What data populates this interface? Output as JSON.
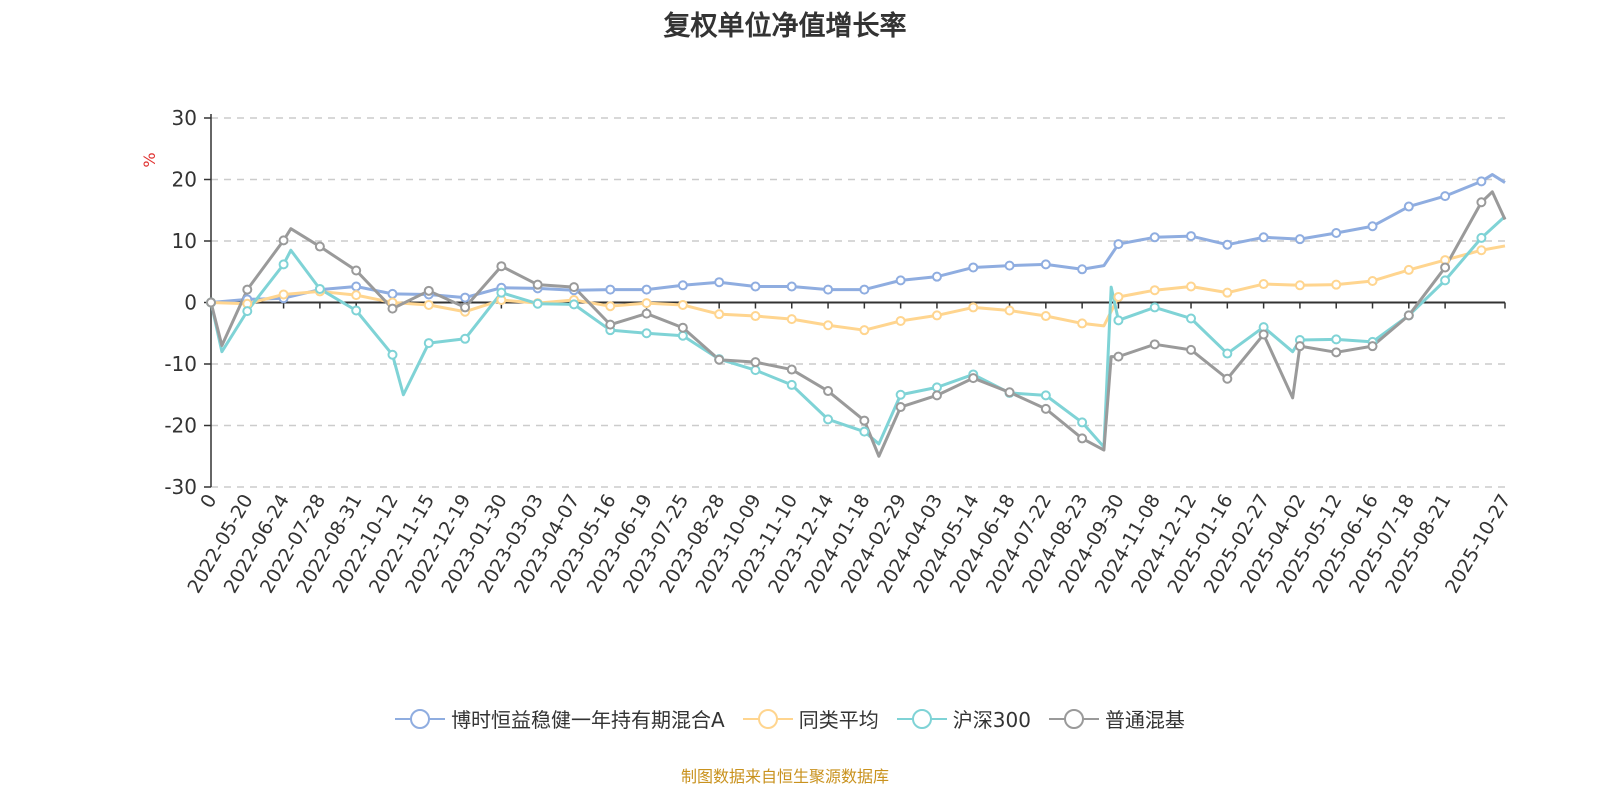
{
  "chart_data": {
    "type": "line",
    "title": "复权单位净值增长率",
    "ylabel": "%",
    "xlabel": "",
    "ylim": [
      -30,
      30
    ],
    "yticks": [
      30,
      20,
      10,
      0,
      -10,
      -20,
      -30
    ],
    "xlim": [
      0,
      35.65
    ],
    "grid": true,
    "legend_position": "bottom",
    "categories": [
      "0",
      "2022-05-20",
      "2022-06-24",
      "2022-07-28",
      "2022-08-31",
      "2022-10-12",
      "2022-11-15",
      "2022-12-19",
      "2023-01-30",
      "2023-03-03",
      "2023-04-07",
      "2023-05-16",
      "2023-06-19",
      "2023-07-25",
      "2023-08-28",
      "2023-10-09",
      "2023-11-10",
      "2023-12-14",
      "2024-01-18",
      "2024-02-29",
      "2024-04-03",
      "2024-05-14",
      "2024-06-18",
      "2024-07-22",
      "2024-08-23",
      "2024-09-30",
      "2024-11-08",
      "2024-12-12",
      "2025-01-16",
      "2025-02-27",
      "2025-04-02",
      "2025-05-12",
      "2025-06-16",
      "2025-07-18",
      "2025-08-21",
      "2025-10-27"
    ],
    "category_index": [
      0,
      1,
      2,
      3,
      4,
      5,
      6,
      7,
      8,
      9,
      10,
      11,
      12,
      13,
      14,
      15,
      16,
      17,
      18,
      19,
      20,
      21,
      22,
      23,
      24,
      25,
      26,
      27,
      28,
      29,
      30,
      31,
      32,
      33,
      34,
      35.65
    ],
    "marker_index": [
      0,
      1,
      2,
      3,
      4,
      5,
      6,
      7,
      8,
      9,
      10,
      11,
      12,
      13,
      14,
      15,
      16,
      17,
      18,
      19,
      20,
      21,
      22,
      23,
      24,
      25,
      26,
      27,
      28,
      29,
      30,
      31,
      32,
      33,
      34,
      35
    ],
    "series": [
      {
        "name": "博时恒益稳健一年持有期混合A",
        "color": "#8fade0",
        "points": [
          [
            0,
            0
          ],
          [
            1,
            0.5
          ],
          [
            2,
            0.7
          ],
          [
            3,
            2.1
          ],
          [
            4,
            2.6
          ],
          [
            5,
            1.4
          ],
          [
            6,
            1.3
          ],
          [
            7,
            0.8
          ],
          [
            8,
            2.4
          ],
          [
            9,
            2.3
          ],
          [
            10,
            2.0
          ],
          [
            11,
            2.1
          ],
          [
            12,
            2.1
          ],
          [
            13,
            2.8
          ],
          [
            14,
            3.3
          ],
          [
            15,
            2.6
          ],
          [
            16,
            2.6
          ],
          [
            17,
            2.1
          ],
          [
            18,
            2.1
          ],
          [
            19,
            3.6
          ],
          [
            20,
            4.2
          ],
          [
            21,
            5.7
          ],
          [
            22,
            6.0
          ],
          [
            23,
            6.2
          ],
          [
            24,
            5.4
          ],
          [
            24.6,
            6.0
          ],
          [
            25,
            9.5
          ],
          [
            26,
            10.6
          ],
          [
            27,
            10.8
          ],
          [
            28,
            9.4
          ],
          [
            29,
            10.6
          ],
          [
            30,
            10.3
          ],
          [
            31,
            11.3
          ],
          [
            32,
            12.4
          ],
          [
            33,
            15.6
          ],
          [
            34,
            17.3
          ],
          [
            35,
            19.7
          ],
          [
            35.3,
            20.8
          ],
          [
            35.65,
            19.5
          ]
        ]
      },
      {
        "name": "同类平均",
        "color": "#ffd58f",
        "points": [
          [
            0,
            0
          ],
          [
            1,
            -0.2
          ],
          [
            2,
            1.3
          ],
          [
            3,
            1.8
          ],
          [
            4,
            1.2
          ],
          [
            5,
            0
          ],
          [
            6,
            -0.4
          ],
          [
            7,
            -1.5
          ],
          [
            8,
            0.4
          ],
          [
            9,
            -0.1
          ],
          [
            10,
            0.4
          ],
          [
            11,
            -0.6
          ],
          [
            12,
            -0.1
          ],
          [
            13,
            -0.4
          ],
          [
            14,
            -1.9
          ],
          [
            15,
            -2.2
          ],
          [
            16,
            -2.7
          ],
          [
            17,
            -3.7
          ],
          [
            18,
            -4.5
          ],
          [
            19,
            -3.0
          ],
          [
            20,
            -2.1
          ],
          [
            21,
            -0.8
          ],
          [
            22,
            -1.3
          ],
          [
            23,
            -2.2
          ],
          [
            24,
            -3.4
          ],
          [
            24.6,
            -3.8
          ],
          [
            25,
            0.9
          ],
          [
            26,
            2.0
          ],
          [
            27,
            2.6
          ],
          [
            28,
            1.6
          ],
          [
            29,
            3.0
          ],
          [
            30,
            2.8
          ],
          [
            31,
            2.9
          ],
          [
            32,
            3.5
          ],
          [
            33,
            5.3
          ],
          [
            34,
            6.9
          ],
          [
            35,
            8.5
          ],
          [
            35.65,
            9.2
          ]
        ]
      },
      {
        "name": "沪深300",
        "color": "#7fd3d6",
        "points": [
          [
            0,
            0
          ],
          [
            0.3,
            -8
          ],
          [
            1,
            -1.4
          ],
          [
            2,
            6.2
          ],
          [
            2.2,
            8.5
          ],
          [
            3,
            2.2
          ],
          [
            4,
            -1.3
          ],
          [
            5,
            -8.5
          ],
          [
            5.3,
            -15
          ],
          [
            6,
            -6.6
          ],
          [
            7,
            -5.9
          ],
          [
            8,
            1.6
          ],
          [
            9,
            -0.2
          ],
          [
            10,
            -0.3
          ],
          [
            11,
            -4.5
          ],
          [
            12,
            -5.0
          ],
          [
            13,
            -5.4
          ],
          [
            14,
            -9.2
          ],
          [
            15,
            -11
          ],
          [
            16,
            -13.4
          ],
          [
            17,
            -19
          ],
          [
            18,
            -21
          ],
          [
            18.4,
            -23
          ],
          [
            19,
            -15
          ],
          [
            20,
            -13.8
          ],
          [
            21,
            -11.7
          ],
          [
            22,
            -14.7
          ],
          [
            23,
            -15.1
          ],
          [
            24,
            -19.5
          ],
          [
            24.6,
            -23.5
          ],
          [
            24.8,
            2.5
          ],
          [
            25,
            -2.9
          ],
          [
            26,
            -0.8
          ],
          [
            27,
            -2.6
          ],
          [
            28,
            -8.3
          ],
          [
            29,
            -4.0
          ],
          [
            29.8,
            -8
          ],
          [
            30,
            -6.1
          ],
          [
            31,
            -6.0
          ],
          [
            32,
            -6.4
          ],
          [
            33,
            -2.1
          ],
          [
            34,
            3.6
          ],
          [
            35,
            10.5
          ],
          [
            35.65,
            14.0
          ]
        ]
      },
      {
        "name": "普通混基",
        "color": "#9a9a9a",
        "points": [
          [
            0,
            0
          ],
          [
            0.3,
            -7
          ],
          [
            1,
            2.1
          ],
          [
            2,
            10.1
          ],
          [
            2.2,
            12
          ],
          [
            3,
            9.1
          ],
          [
            4,
            5.2
          ],
          [
            5,
            -1
          ],
          [
            6,
            1.9
          ],
          [
            7,
            -0.8
          ],
          [
            8,
            5.9
          ],
          [
            9,
            2.9
          ],
          [
            10,
            2.5
          ],
          [
            11,
            -3.6
          ],
          [
            12,
            -1.8
          ],
          [
            13,
            -4.1
          ],
          [
            14,
            -9.3
          ],
          [
            15,
            -9.7
          ],
          [
            16,
            -10.9
          ],
          [
            17,
            -14.4
          ],
          [
            18,
            -19.2
          ],
          [
            18.4,
            -25
          ],
          [
            19,
            -17
          ],
          [
            20,
            -15.1
          ],
          [
            21,
            -12.3
          ],
          [
            22,
            -14.6
          ],
          [
            23,
            -17.3
          ],
          [
            24,
            -22.1
          ],
          [
            24.6,
            -24
          ],
          [
            24.8,
            -8.8
          ],
          [
            25,
            -8.8
          ],
          [
            26,
            -6.8
          ],
          [
            27,
            -7.7
          ],
          [
            28,
            -12.4
          ],
          [
            29,
            -5.2
          ],
          [
            29.8,
            -15.5
          ],
          [
            30,
            -7.1
          ],
          [
            31,
            -8.1
          ],
          [
            32,
            -7.1
          ],
          [
            33,
            -2.1
          ],
          [
            34,
            5.7
          ],
          [
            35,
            16.3
          ],
          [
            35.3,
            18
          ],
          [
            35.65,
            13.5
          ]
        ]
      }
    ]
  },
  "footer": "制图数据来自恒生聚源数据库"
}
